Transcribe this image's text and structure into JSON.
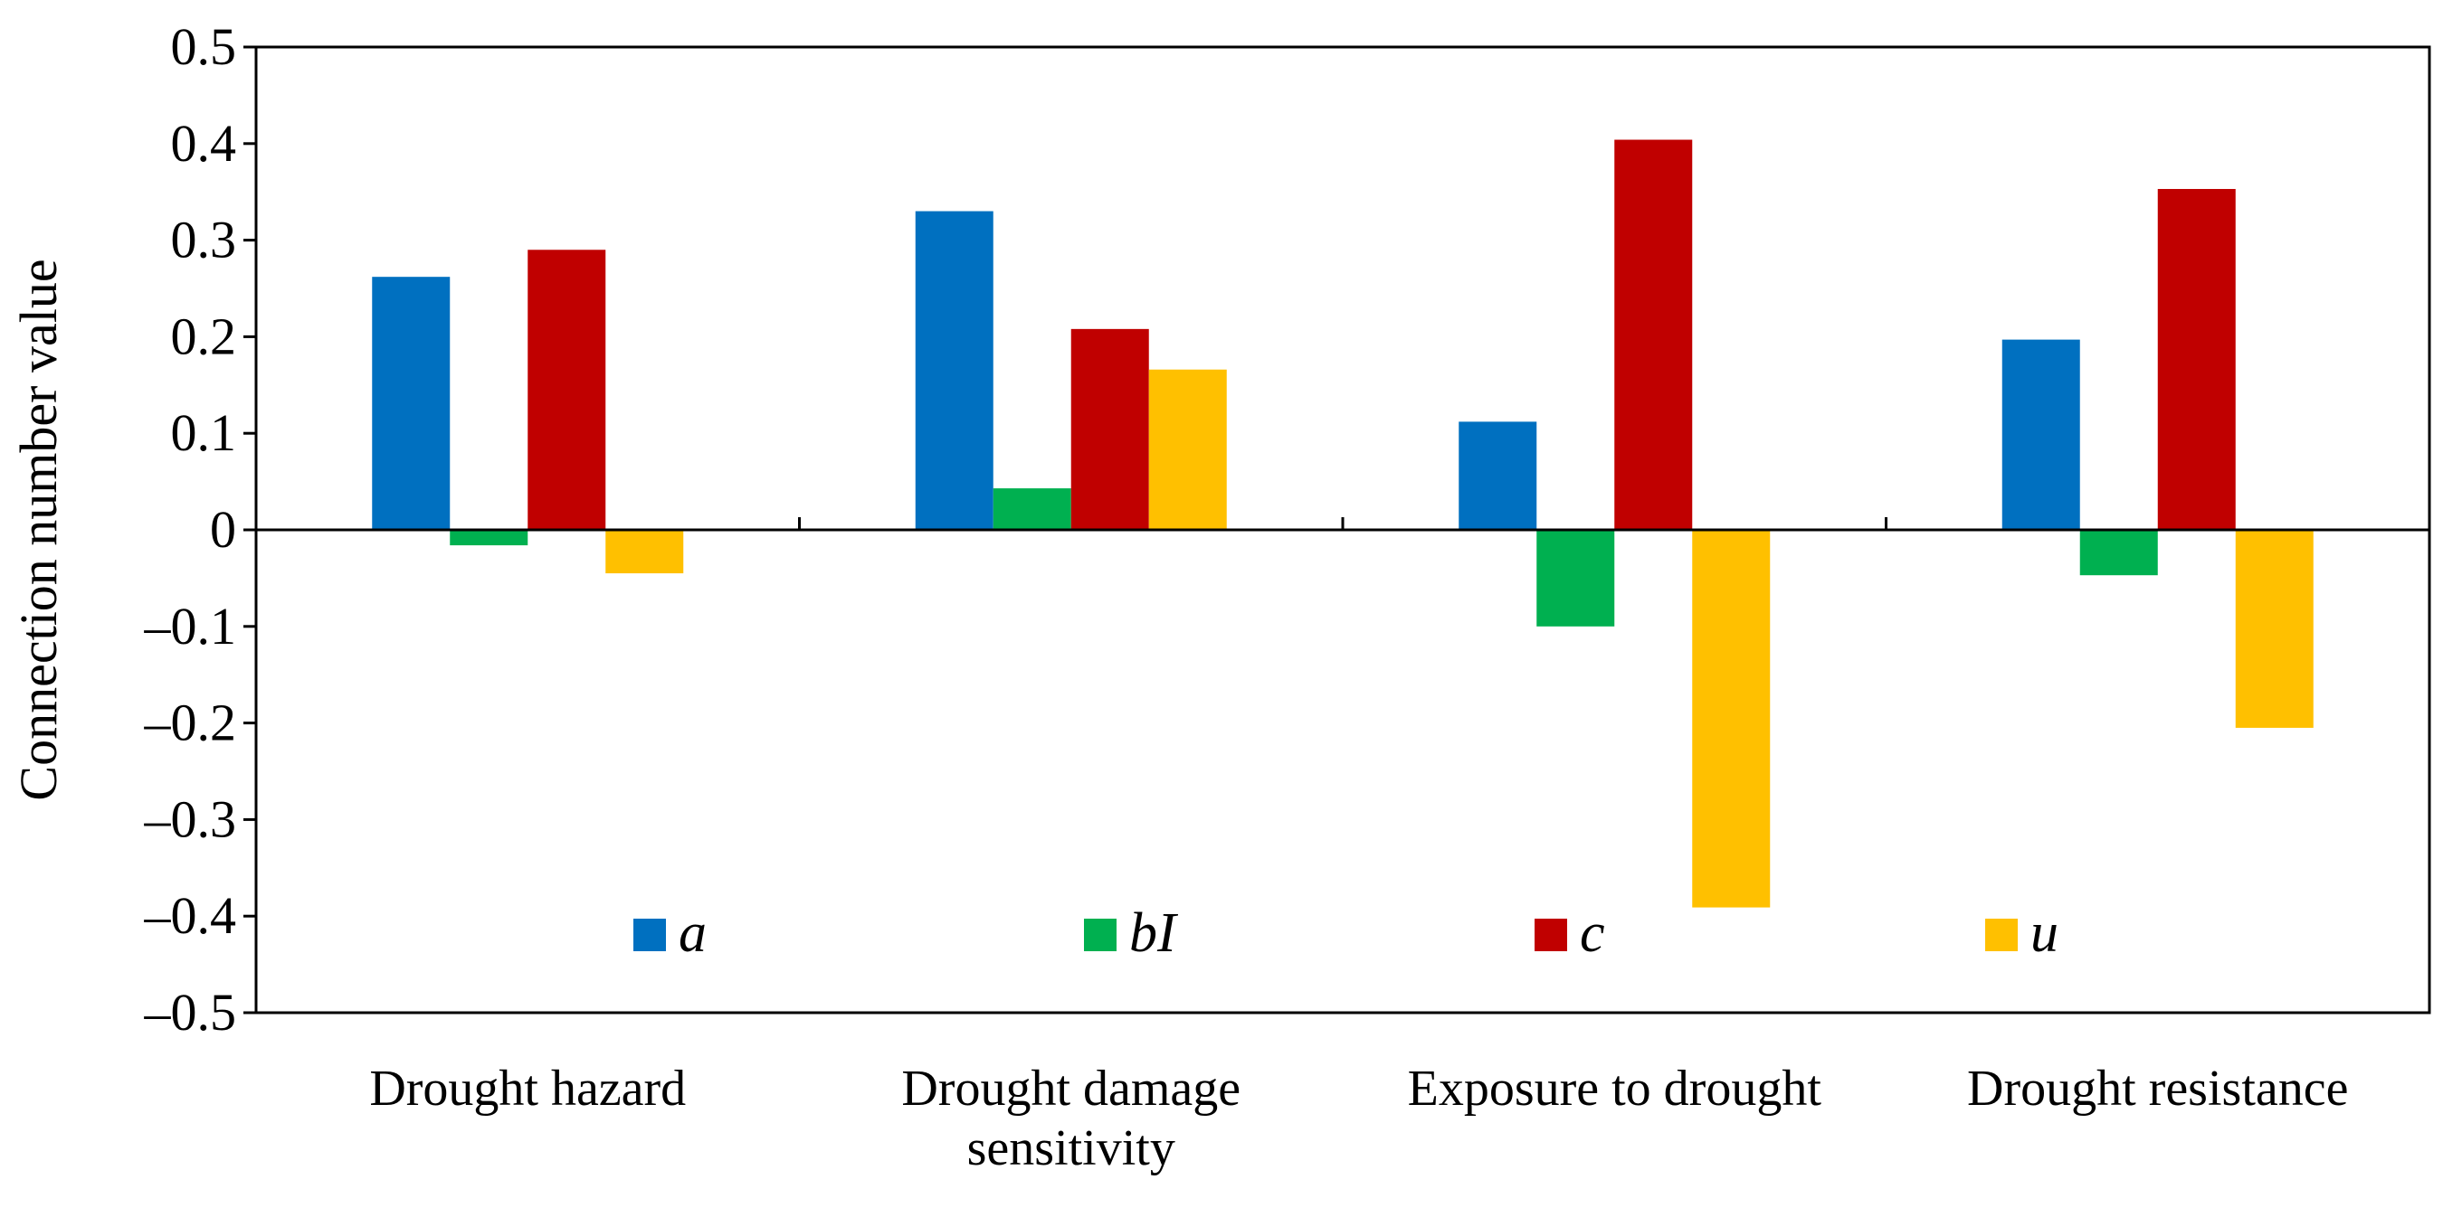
{
  "chart_data": {
    "type": "bar",
    "title": "",
    "xlabel": "",
    "ylabel": "Connection number value",
    "ylim": [
      -0.5,
      0.5
    ],
    "yticks": [
      0.5,
      0.4,
      0.3,
      0.2,
      0.1,
      0,
      -0.1,
      -0.2,
      -0.3,
      -0.4,
      -0.5
    ],
    "ytick_labels": [
      "0.5",
      "0.4",
      "0.3",
      "0.2",
      "0.1",
      "0",
      "–0.1",
      "–0.2",
      "–0.3",
      "–0.4",
      "–0.5"
    ],
    "grid": false,
    "legend_position": "inside-bottom",
    "categories": [
      [
        "Drought hazard"
      ],
      [
        "Drought damage",
        "sensitivity"
      ],
      [
        "Exposure to drought"
      ],
      [
        "Drought resistance"
      ]
    ],
    "series": [
      {
        "name": "a",
        "color": "#0070C0",
        "values": [
          0.262,
          0.33,
          0.112,
          0.197
        ]
      },
      {
        "name": "bI",
        "color": "#00B050",
        "values": [
          -0.016,
          0.043,
          -0.1,
          -0.047
        ]
      },
      {
        "name": "c",
        "color": "#C00000",
        "values": [
          0.29,
          0.208,
          0.404,
          0.353
        ]
      },
      {
        "name": "u",
        "color": "#FFC000",
        "values": [
          -0.045,
          0.166,
          -0.391,
          -0.205
        ]
      }
    ]
  }
}
